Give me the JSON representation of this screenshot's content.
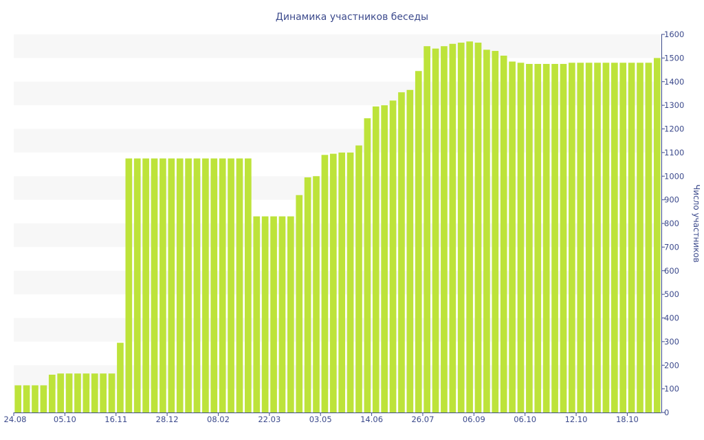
{
  "chart_data": {
    "type": "bar",
    "title": "Динамика участников беседы",
    "xlabel": "",
    "ylabel": "Число участников",
    "ylim": [
      0,
      1600
    ],
    "yticks": [
      0,
      100,
      200,
      300,
      400,
      500,
      600,
      700,
      800,
      900,
      1000,
      1100,
      1200,
      1300,
      1400,
      1500,
      1600
    ],
    "y_axis_position": "right",
    "grid": "alternating horizontal bands",
    "x_tick_labels": [
      {
        "label": "24.08",
        "index": 0
      },
      {
        "label": "05.10",
        "index": 6
      },
      {
        "label": "16.11",
        "index": 12
      },
      {
        "label": "28.12",
        "index": 18
      },
      {
        "label": "08.02",
        "index": 24
      },
      {
        "label": "22.03",
        "index": 30
      },
      {
        "label": "03.05",
        "index": 36
      },
      {
        "label": "14.06",
        "index": 42
      },
      {
        "label": "26.07",
        "index": 48
      },
      {
        "label": "06.09",
        "index": 54
      },
      {
        "label": "06.10",
        "index": 60
      },
      {
        "label": "12.10",
        "index": 66
      },
      {
        "label": "18.10",
        "index": 72
      }
    ],
    "values": [
      115,
      115,
      115,
      115,
      160,
      165,
      165,
      165,
      165,
      165,
      165,
      165,
      295,
      1075,
      1075,
      1075,
      1075,
      1075,
      1075,
      1075,
      1075,
      1075,
      1075,
      1075,
      1075,
      1075,
      1075,
      1075,
      830,
      830,
      830,
      830,
      830,
      920,
      995,
      1000,
      1090,
      1095,
      1100,
      1100,
      1130,
      1245,
      1295,
      1300,
      1320,
      1355,
      1365,
      1445,
      1550,
      1540,
      1550,
      1560,
      1565,
      1570,
      1565,
      1535,
      1530,
      1510,
      1485,
      1480,
      1475,
      1475,
      1475,
      1475,
      1475,
      1480,
      1480,
      1480,
      1480,
      1480,
      1480,
      1480,
      1480,
      1480,
      1480,
      1500
    ],
    "colors": {
      "bar": "#bde33a",
      "band": "#f7f7f7",
      "text": "#3c4a8c",
      "axis": "#3c4a8c"
    }
  }
}
